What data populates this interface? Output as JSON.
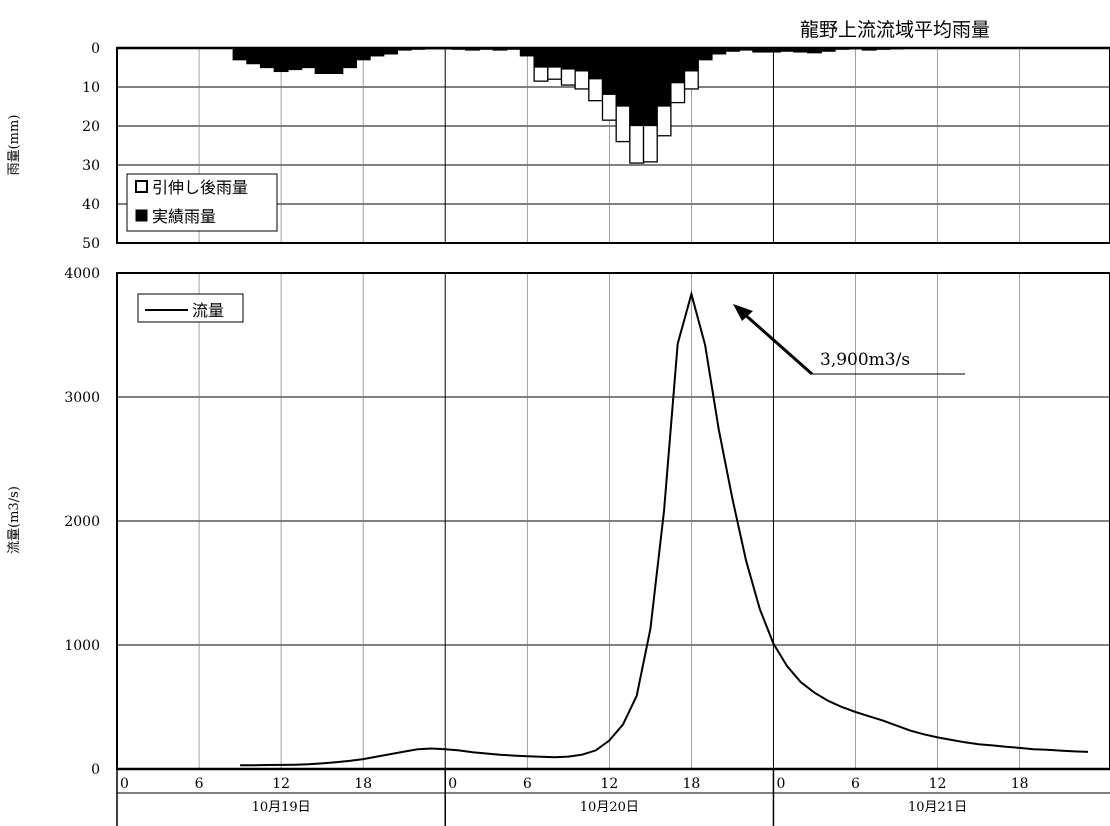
{
  "chart_data": [
    {
      "type": "bar",
      "title": "龍野上流流域平均雨量",
      "ylabel": "雨量(mm)",
      "ylim": [
        0,
        50
      ],
      "yticks": [
        0,
        10,
        20,
        30,
        40,
        50
      ],
      "y_inverted": true,
      "grid": true,
      "legend_position": "bottom-left",
      "series": [
        {
          "name": "引伸し後雨量",
          "color": "#ffffff",
          "x": [
            9,
            10,
            11,
            12,
            13,
            14,
            15,
            16,
            17,
            18,
            19,
            20,
            21,
            22,
            23,
            24,
            25,
            26,
            27,
            28,
            29,
            30,
            31,
            32,
            33,
            34,
            35,
            36,
            37,
            38,
            39,
            40,
            41,
            42,
            43,
            44,
            45,
            46,
            47,
            48,
            49,
            50,
            51,
            52,
            53,
            54,
            55,
            56,
            57,
            58,
            59,
            60,
            61,
            62,
            63,
            64,
            65,
            66,
            67,
            68,
            69,
            70,
            71
          ],
          "values": [
            3,
            4,
            5,
            6,
            5.5,
            5,
            6.5,
            6.5,
            5,
            3,
            2,
            1.5,
            0.5,
            0.3,
            0.2,
            0.2,
            0.3,
            0.5,
            0.3,
            0.5,
            0.3,
            2,
            8.5,
            8,
            9.5,
            10.5,
            13.5,
            18.5,
            24,
            29.5,
            29.2,
            22.5,
            14,
            10.5,
            3,
            1.5,
            0.8,
            0.5,
            1,
            1,
            0.8,
            1,
            1.2,
            0.8,
            0.3,
            0.2,
            0.5,
            0.3,
            0.2,
            0.1,
            0.1,
            0.1,
            0.1,
            0,
            0,
            0,
            0,
            0,
            0,
            0,
            0,
            0,
            0
          ]
        },
        {
          "name": "実績雨量",
          "color": "#000000",
          "x": [
            9,
            10,
            11,
            12,
            13,
            14,
            15,
            16,
            17,
            18,
            19,
            20,
            21,
            22,
            23,
            24,
            25,
            26,
            27,
            28,
            29,
            30,
            31,
            32,
            33,
            34,
            35,
            36,
            37,
            38,
            39,
            40,
            41,
            42,
            43,
            44,
            45,
            46,
            47,
            48,
            49,
            50,
            51,
            52,
            53,
            54,
            55,
            56,
            57,
            58,
            59,
            60,
            61,
            62,
            63,
            64,
            65,
            66,
            67,
            68,
            69,
            70,
            71
          ],
          "values": [
            3,
            4,
            5,
            6,
            5.5,
            5,
            6.5,
            6.5,
            5,
            3,
            2,
            1.5,
            0.5,
            0.3,
            0.2,
            0.2,
            0.3,
            0.5,
            0.3,
            0.5,
            0.3,
            2,
            5,
            5,
            5.5,
            6,
            8,
            12,
            15,
            20,
            20,
            15,
            9,
            6,
            3,
            1.5,
            0.8,
            0.5,
            1,
            1,
            0.8,
            1,
            1.2,
            0.8,
            0.3,
            0.2,
            0.5,
            0.3,
            0.2,
            0.1,
            0.1,
            0.1,
            0.1,
            0,
            0,
            0,
            0,
            0,
            0,
            0,
            0,
            0,
            0
          ]
        }
      ]
    },
    {
      "type": "line",
      "ylabel": "流量(m3/s)",
      "ylim": [
        0,
        4000
      ],
      "yticks": [
        0,
        1000,
        2000,
        3000,
        4000
      ],
      "grid": true,
      "legend_position": "top-left",
      "series": [
        {
          "name": "流量",
          "color": "#000000",
          "x": [
            9,
            10,
            11,
            12,
            13,
            14,
            15,
            16,
            17,
            18,
            19,
            20,
            21,
            22,
            23,
            24,
            25,
            26,
            27,
            28,
            29,
            30,
            31,
            32,
            33,
            34,
            35,
            36,
            37,
            38,
            39,
            40,
            41,
            42,
            43,
            44,
            45,
            46,
            47,
            48,
            49,
            50,
            51,
            52,
            53,
            54,
            55,
            56,
            57,
            58,
            59,
            60,
            61,
            62,
            63,
            64,
            65,
            66,
            67,
            68,
            69,
            70,
            71
          ],
          "values": [
            30,
            30,
            32,
            33,
            35,
            38,
            45,
            55,
            65,
            80,
            100,
            120,
            140,
            160,
            165,
            160,
            150,
            135,
            125,
            115,
            108,
            103,
            98,
            95,
            100,
            115,
            150,
            230,
            360,
            590,
            1130,
            2080,
            3430,
            3830,
            3420,
            2740,
            2180,
            1680,
            1290,
            1010,
            830,
            700,
            615,
            550,
            500,
            460,
            425,
            390,
            350,
            310,
            280,
            255,
            235,
            215,
            200,
            190,
            180,
            170,
            160,
            155,
            148,
            142,
            138
          ]
        }
      ],
      "annotation": {
        "text": "3,900m3/s",
        "x": 43,
        "y": 3830
      }
    }
  ],
  "x_axis": {
    "range_hours": [
      0,
      71
    ],
    "tick_labels": [
      "0",
      "6",
      "12",
      "18",
      "0",
      "6",
      "12",
      "18",
      "0",
      "6",
      "12",
      "18"
    ],
    "tick_hours": [
      0,
      6,
      12,
      18,
      24,
      30,
      36,
      42,
      48,
      54,
      60,
      66
    ],
    "days": [
      "10月19日",
      "10月20日",
      "10月21日"
    ]
  }
}
